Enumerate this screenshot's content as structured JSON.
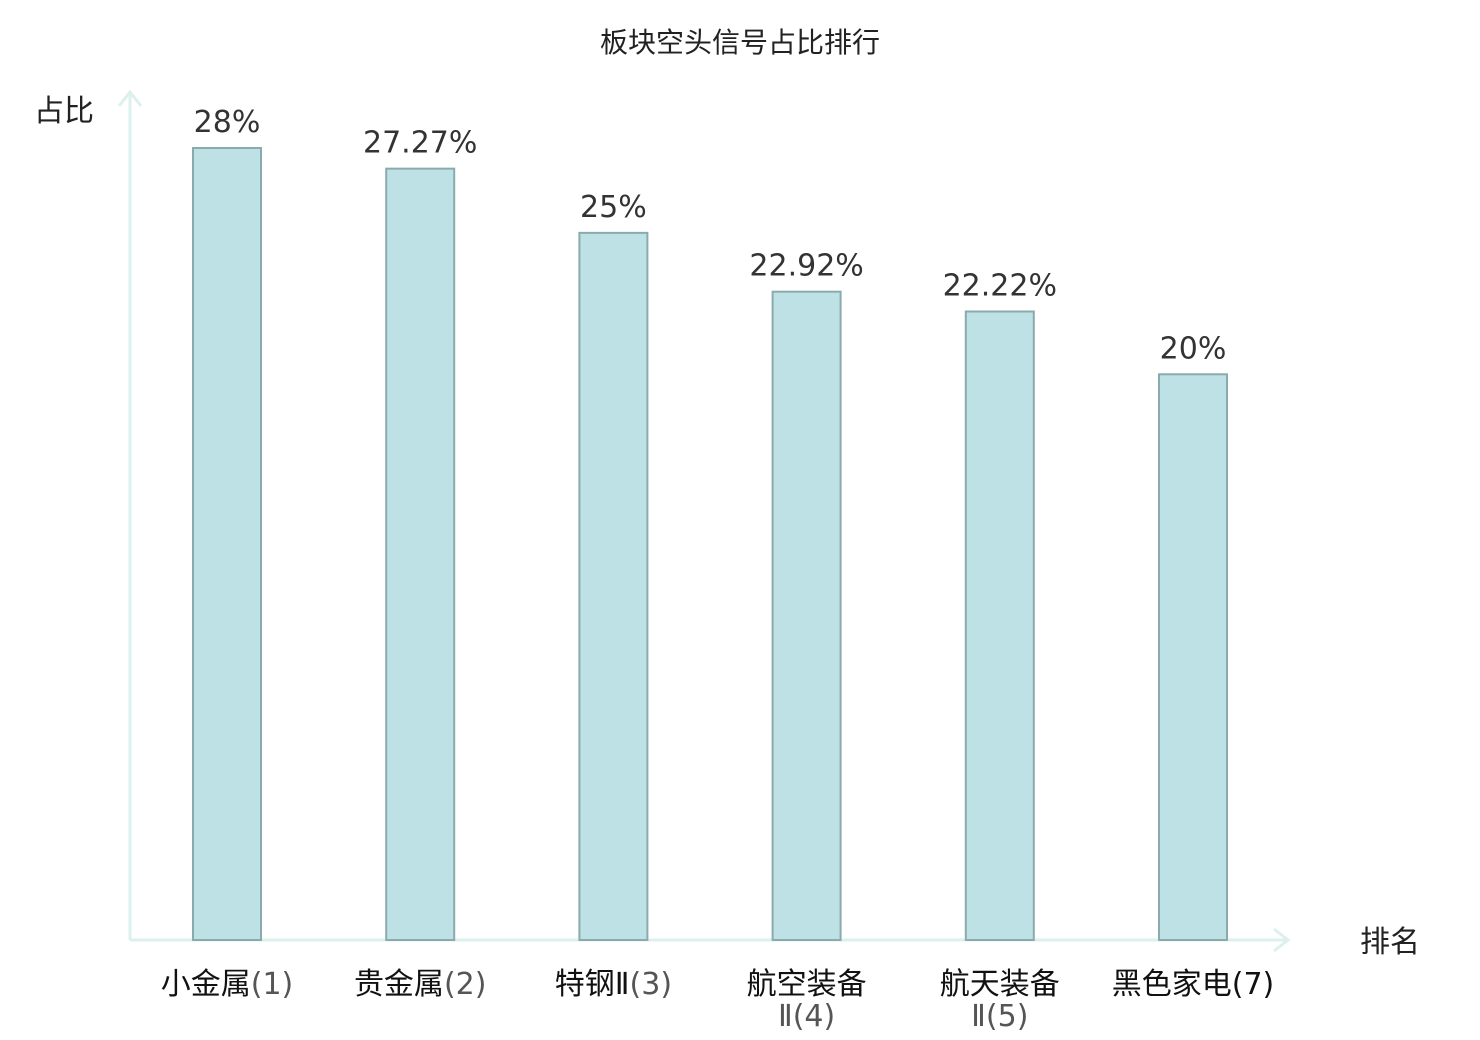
{
  "chart_data": {
    "type": "bar",
    "title": "板块空头信号占比排行",
    "ylabel": "占比",
    "xlabel": "排名",
    "ylim": [
      0,
      30
    ],
    "categories": [
      {
        "name": "小金属",
        "rank": "(1)",
        "name_line2": "",
        "value": 28,
        "label": "28%",
        "highlight": false
      },
      {
        "name": "贵金属",
        "rank": "(2)",
        "name_line2": "",
        "value": 27.27,
        "label": "27.27%",
        "highlight": false
      },
      {
        "name": "特钢Ⅱ",
        "rank": "(3)",
        "name_line2": "",
        "value": 25,
        "label": "25%",
        "highlight": false
      },
      {
        "name": "航空装备",
        "rank": "(4)",
        "name_line2": "Ⅱ",
        "value": 22.92,
        "label": "22.92%",
        "highlight": false
      },
      {
        "name": "航天装备",
        "rank": "(5)",
        "name_line2": "Ⅱ",
        "value": 22.22,
        "label": "22.22%",
        "highlight": false
      },
      {
        "name": "黑色家电",
        "rank": "(7)",
        "name_line2": "",
        "value": 20,
        "label": "20%",
        "highlight": true
      }
    ],
    "colors": {
      "bar_fill": "#bde1e4",
      "bar_stroke": "#8aabad",
      "axis": "#dcf0ee",
      "highlight": "#e8161b"
    },
    "grid": false,
    "legend": "none"
  }
}
